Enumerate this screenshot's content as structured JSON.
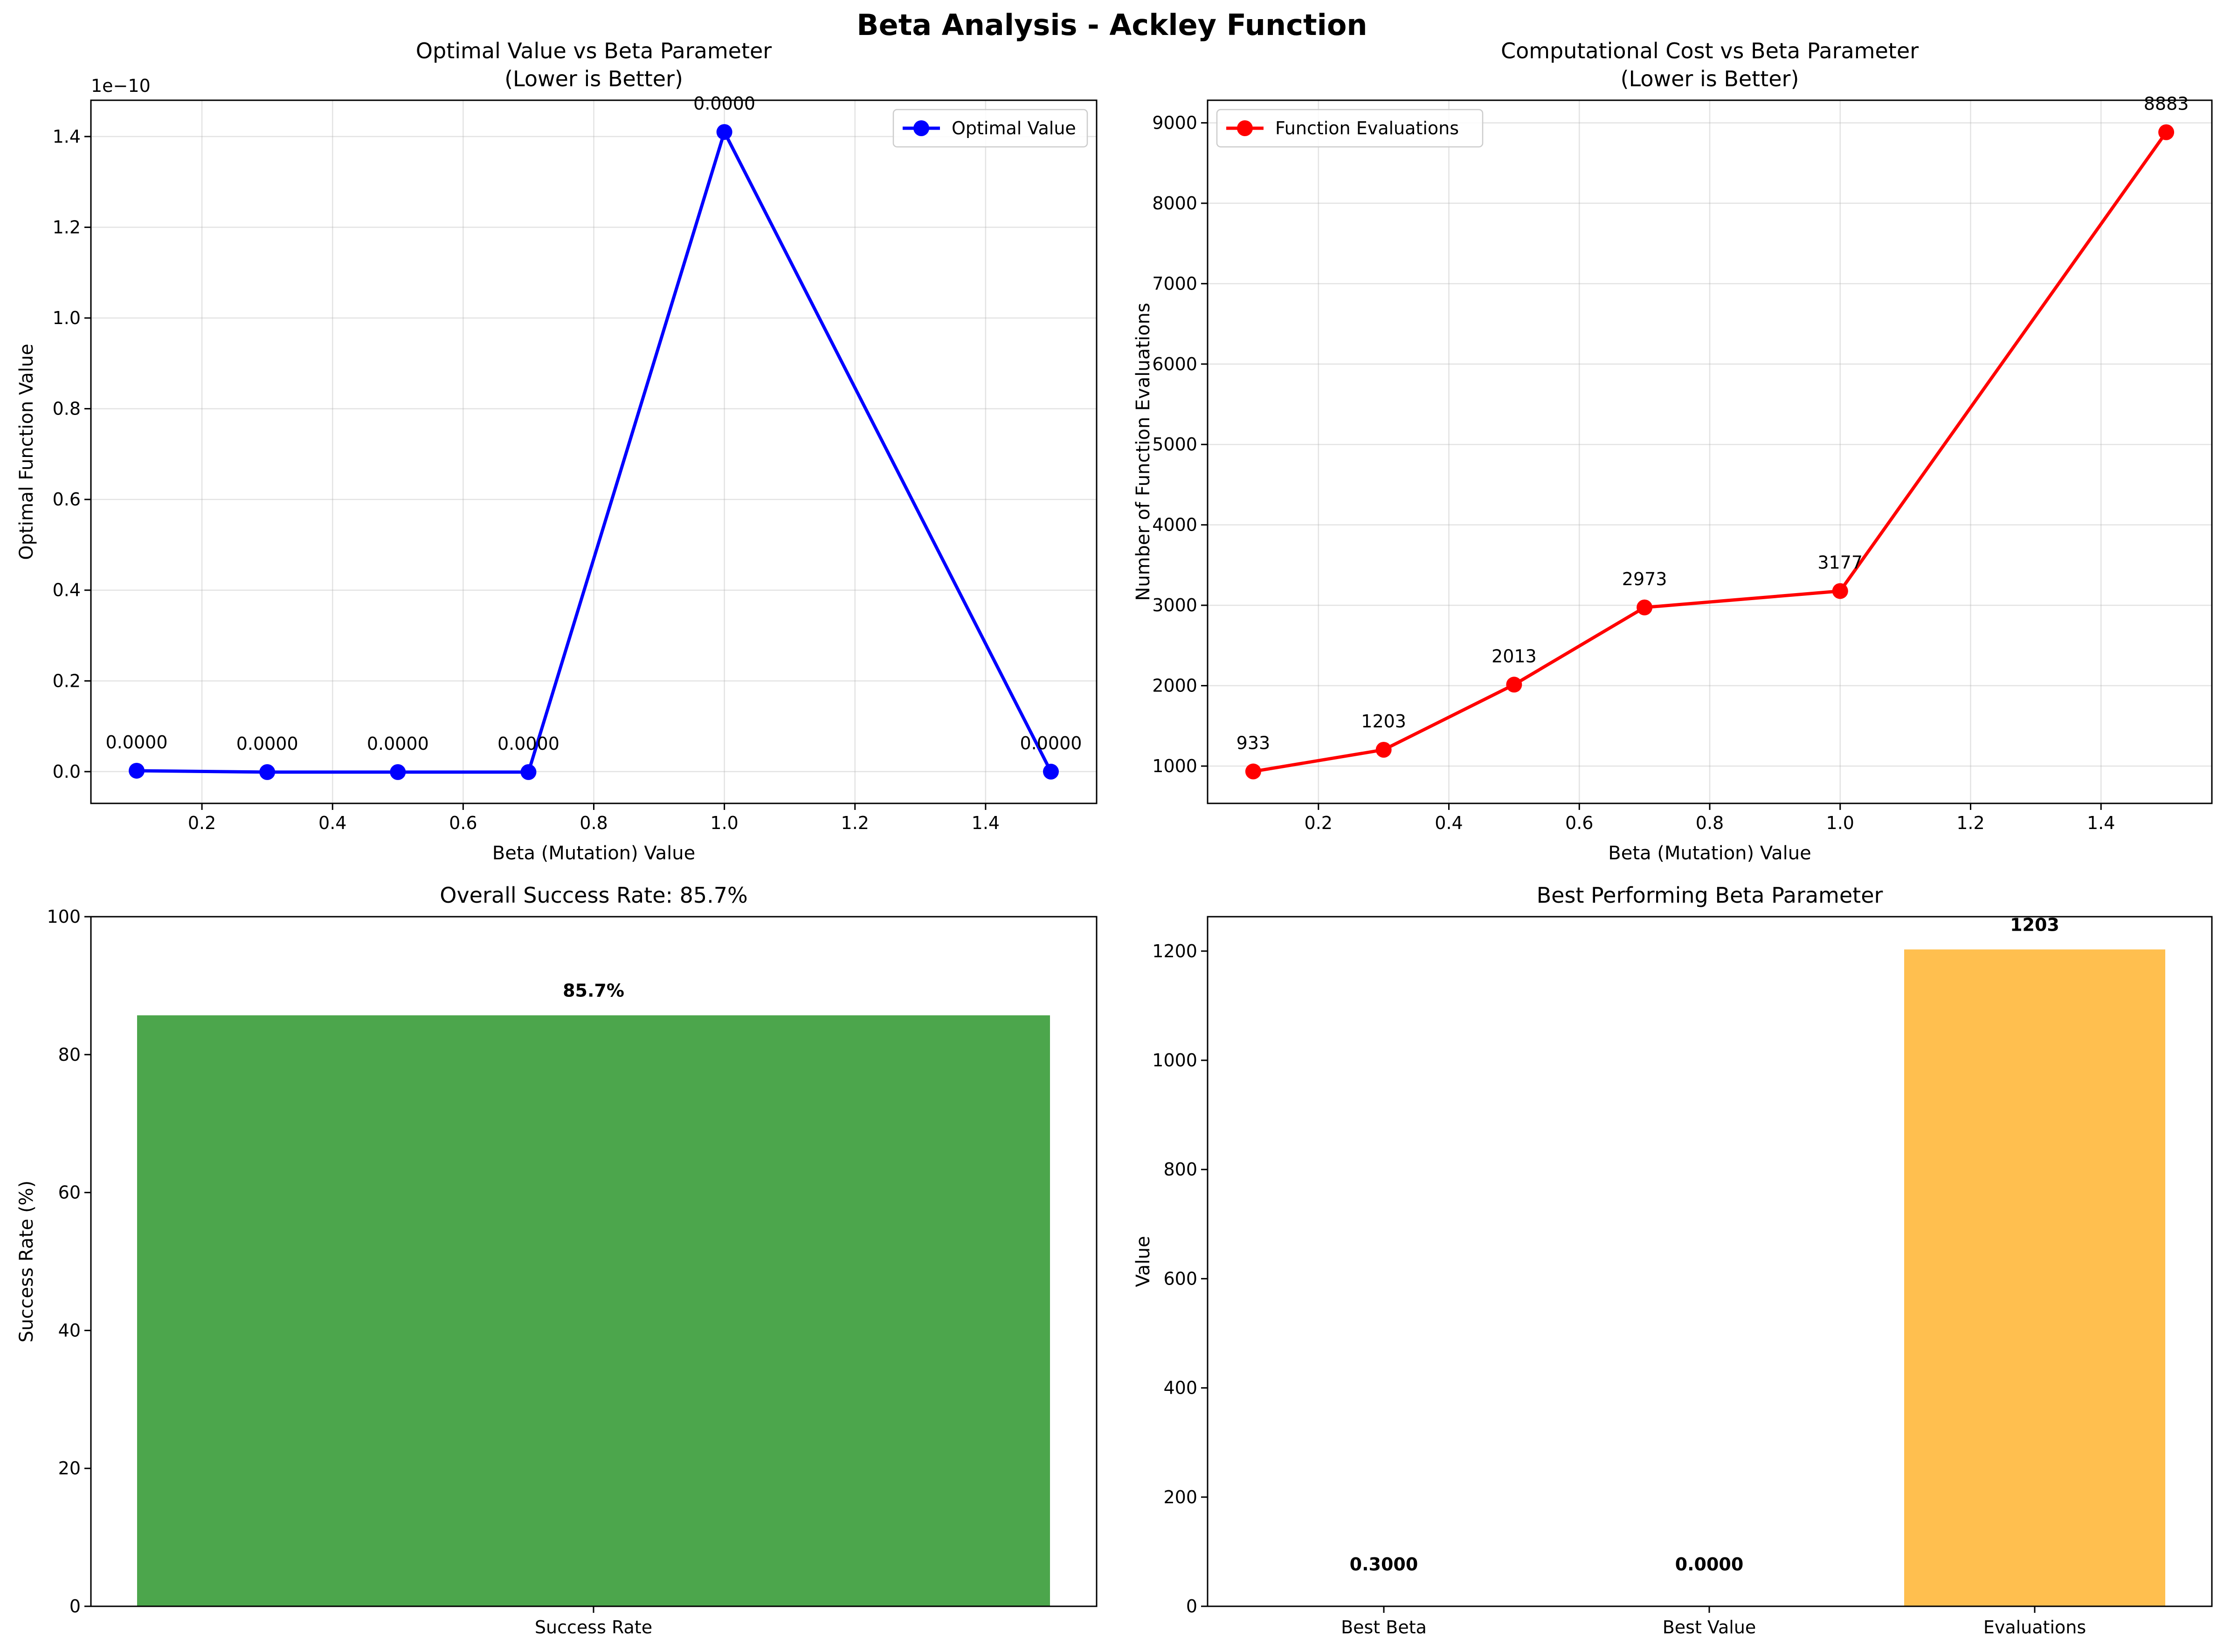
{
  "figure": {
    "title": "Beta Analysis - Ackley Function"
  },
  "chart_data": [
    {
      "id": "optimal",
      "type": "line",
      "title": "Optimal Value vs Beta Parameter",
      "subtitle": "(Lower is Better)",
      "xlabel": "Beta (Mutation) Value",
      "ylabel": "Optimal Function Value",
      "offset_label": "1e−10",
      "color": "#0000ff",
      "grid": true,
      "legend": "upper right",
      "xlim": [
        0.03,
        1.57
      ],
      "ylim": [
        -0.07,
        1.48
      ],
      "xticks": [
        0.2,
        0.4,
        0.6,
        0.8,
        1.0,
        1.2,
        1.4
      ],
      "xtick_labels": [
        "0.2",
        "0.4",
        "0.6",
        "0.8",
        "1.0",
        "1.2",
        "1.4"
      ],
      "yticks": [
        0.0,
        0.2,
        0.4,
        0.6,
        0.8,
        1.0,
        1.2,
        1.4
      ],
      "ytick_labels": [
        "0.0",
        "0.2",
        "0.4",
        "0.6",
        "0.8",
        "1.0",
        "1.2",
        "1.4"
      ],
      "series": [
        {
          "name": "Optimal Value",
          "x": [
            0.1,
            0.3,
            0.5,
            0.7,
            1.0,
            1.5
          ],
          "y": [
            0.002,
            -0.001,
            -0.001,
            -0.001,
            1.41,
            0.0
          ],
          "labels": [
            "0.0000",
            "0.0000",
            "0.0000",
            "0.0000",
            "0.0000",
            "0.0000"
          ]
        }
      ]
    },
    {
      "id": "cost",
      "type": "line",
      "title": "Computational Cost vs Beta Parameter",
      "subtitle": "(Lower is Better)",
      "xlabel": "Beta (Mutation) Value",
      "ylabel": "Number of Function Evaluations",
      "color": "#ff0000",
      "grid": true,
      "legend": "upper left",
      "xlim": [
        0.03,
        1.57
      ],
      "ylim": [
        536,
        9281
      ],
      "xticks": [
        0.2,
        0.4,
        0.6,
        0.8,
        1.0,
        1.2,
        1.4
      ],
      "xtick_labels": [
        "0.2",
        "0.4",
        "0.6",
        "0.8",
        "1.0",
        "1.2",
        "1.4"
      ],
      "yticks": [
        1000,
        2000,
        3000,
        4000,
        5000,
        6000,
        7000,
        8000,
        9000
      ],
      "ytick_labels": [
        "1000",
        "2000",
        "3000",
        "4000",
        "5000",
        "6000",
        "7000",
        "8000",
        "9000"
      ],
      "series": [
        {
          "name": "Function Evaluations",
          "x": [
            0.1,
            0.3,
            0.5,
            0.7,
            1.0,
            1.5
          ],
          "y": [
            933,
            1203,
            2013,
            2973,
            3177,
            8883
          ],
          "labels": [
            "933",
            "1203",
            "2013",
            "2973",
            "3177",
            "8883"
          ]
        }
      ]
    },
    {
      "id": "success",
      "type": "bar",
      "title": "Overall Success Rate: 85.7%",
      "xlabel": "",
      "ylabel": "Success Rate (%)",
      "color": "#4ca64c",
      "grid": false,
      "ylim": [
        0,
        100
      ],
      "yticks": [
        0,
        20,
        40,
        60,
        80,
        100
      ],
      "ytick_labels": [
        "0",
        "20",
        "40",
        "60",
        "80",
        "100"
      ],
      "categories": [
        "Success Rate"
      ],
      "values": [
        85.7
      ],
      "labels": [
        "85.7%"
      ]
    },
    {
      "id": "best",
      "type": "bar",
      "title": "Best Performing Beta Parameter",
      "xlabel": "",
      "ylabel": "Value",
      "colors": [
        "#4da6e0",
        "#4ca64c",
        "#ffbf4f"
      ],
      "grid": false,
      "ylim": [
        0,
        1263
      ],
      "yticks": [
        0,
        200,
        400,
        600,
        800,
        1000,
        1200
      ],
      "ytick_labels": [
        "0",
        "200",
        "400",
        "600",
        "800",
        "1000",
        "1200"
      ],
      "categories": [
        "Best Beta",
        "Best Value",
        "Evaluations"
      ],
      "values": [
        0.3,
        0.0,
        1203
      ],
      "labels": [
        "0.3000",
        "0.0000",
        "1203"
      ]
    }
  ]
}
